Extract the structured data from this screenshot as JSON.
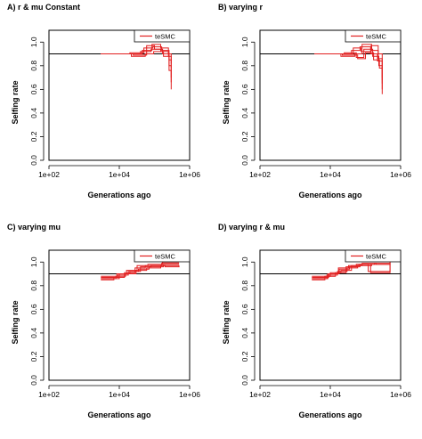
{
  "colors": {
    "series": "#e11f1f",
    "reference": "#000000",
    "axis": "#000000"
  },
  "chart_data": [
    {
      "type": "line",
      "title": "A) r & mu Constant",
      "xlabel": "Generations ago",
      "ylabel": "Selfing rate",
      "x_scale": "log",
      "xlim": [
        100,
        1000000
      ],
      "ylim": [
        0,
        1.1
      ],
      "xticks": [
        "1e+02",
        "1e+04",
        "1e+06"
      ],
      "yticks": [
        "0.0",
        "0.2",
        "0.4",
        "0.6",
        "0.8",
        "1.0"
      ],
      "reference_line": 0.9,
      "legend": "top-right",
      "series": [
        {
          "name": "teSMC",
          "replicates": [
            [
              [
                3000,
                0.9
              ],
              [
                15000,
                0.9
              ],
              [
                40000,
                0.92
              ],
              [
                80000,
                0.94
              ],
              [
                150000,
                0.92
              ],
              [
                250000,
                0.88
              ],
              [
                300000,
                0.82
              ]
            ],
            [
              [
                3000,
                0.9
              ],
              [
                20000,
                0.91
              ],
              [
                50000,
                0.95
              ],
              [
                90000,
                0.96
              ],
              [
                160000,
                0.93
              ],
              [
                260000,
                0.85
              ],
              [
                300000,
                0.78
              ]
            ],
            [
              [
                3000,
                0.9
              ],
              [
                25000,
                0.89
              ],
              [
                60000,
                0.97
              ],
              [
                100000,
                0.94
              ],
              [
                170000,
                0.9
              ],
              [
                260000,
                0.76
              ],
              [
                300000,
                0.7
              ]
            ],
            [
              [
                3000,
                0.9
              ],
              [
                18000,
                0.9
              ],
              [
                45000,
                0.93
              ],
              [
                85000,
                0.98
              ],
              [
                150000,
                0.95
              ],
              [
                250000,
                0.9
              ],
              [
                300000,
                0.6
              ]
            ],
            [
              [
                3000,
                0.9
              ],
              [
                22000,
                0.88
              ],
              [
                55000,
                0.9
              ],
              [
                95000,
                0.92
              ],
              [
                180000,
                0.88
              ],
              [
                260000,
                0.8
              ],
              [
                300000,
                0.66
              ]
            ]
          ]
        }
      ]
    },
    {
      "type": "line",
      "title": "B) varying r",
      "xlabel": "Generations ago",
      "ylabel": "Selfing rate",
      "x_scale": "log",
      "xlim": [
        100,
        1000000
      ],
      "ylim": [
        0,
        1.1
      ],
      "xticks": [
        "1e+02",
        "1e+04",
        "1e+06"
      ],
      "yticks": [
        "0.0",
        "0.2",
        "0.4",
        "0.6",
        "0.8",
        "1.0"
      ],
      "reference_line": 0.9,
      "legend": "top-right",
      "series": [
        {
          "name": "teSMC",
          "replicates": [
            [
              [
                3500,
                0.9
              ],
              [
                15000,
                0.9
              ],
              [
                40000,
                0.93
              ],
              [
                70000,
                0.96
              ],
              [
                140000,
                0.9
              ],
              [
                220000,
                0.84
              ],
              [
                300000,
                0.7
              ]
            ],
            [
              [
                3500,
                0.9
              ],
              [
                20000,
                0.88
              ],
              [
                50000,
                0.9
              ],
              [
                80000,
                0.98
              ],
              [
                150000,
                0.93
              ],
              [
                230000,
                0.86
              ],
              [
                300000,
                0.6
              ]
            ],
            [
              [
                3500,
                0.9
              ],
              [
                25000,
                0.91
              ],
              [
                55000,
                0.87
              ],
              [
                90000,
                0.94
              ],
              [
                160000,
                0.88
              ],
              [
                240000,
                0.8
              ],
              [
                300000,
                0.56
              ]
            ],
            [
              [
                3500,
                0.9
              ],
              [
                18000,
                0.9
              ],
              [
                45000,
                0.95
              ],
              [
                75000,
                0.92
              ],
              [
                145000,
                0.97
              ],
              [
                230000,
                0.9
              ],
              [
                300000,
                0.65
              ]
            ],
            [
              [
                3500,
                0.9
              ],
              [
                22000,
                0.89
              ],
              [
                60000,
                0.86
              ],
              [
                100000,
                0.91
              ],
              [
                170000,
                0.85
              ],
              [
                250000,
                0.78
              ],
              [
                300000,
                0.68
              ]
            ]
          ]
        }
      ]
    },
    {
      "type": "line",
      "title": "C) varying mu",
      "xlabel": "Generations ago",
      "ylabel": "Selfing rate",
      "x_scale": "log",
      "xlim": [
        100,
        1000000
      ],
      "ylim": [
        0,
        1.1
      ],
      "xticks": [
        "1e+02",
        "1e+04",
        "1e+06"
      ],
      "yticks": [
        "0.0",
        "0.2",
        "0.4",
        "0.6",
        "0.8",
        "1.0"
      ],
      "reference_line": 0.9,
      "legend": "top-right",
      "series": [
        {
          "name": "teSMC",
          "replicates": [
            [
              [
                3000,
                0.86
              ],
              [
                8000,
                0.88
              ],
              [
                15000,
                0.9
              ],
              [
                30000,
                0.93
              ],
              [
                60000,
                0.95
              ],
              [
                150000,
                0.97
              ],
              [
                500000,
                0.97
              ]
            ],
            [
              [
                3000,
                0.87
              ],
              [
                9000,
                0.89
              ],
              [
                18000,
                0.92
              ],
              [
                35000,
                0.94
              ],
              [
                70000,
                0.96
              ],
              [
                180000,
                0.98
              ],
              [
                500000,
                0.98
              ]
            ],
            [
              [
                3000,
                0.85
              ],
              [
                7000,
                0.87
              ],
              [
                14000,
                0.91
              ],
              [
                28000,
                0.95
              ],
              [
                55000,
                0.97
              ],
              [
                160000,
                0.99
              ],
              [
                500000,
                0.99
              ]
            ],
            [
              [
                3000,
                0.86
              ],
              [
                10000,
                0.9
              ],
              [
                20000,
                0.92
              ],
              [
                40000,
                0.96
              ],
              [
                80000,
                0.97
              ],
              [
                200000,
                0.96
              ],
              [
                500000,
                0.97
              ]
            ],
            [
              [
                3000,
                0.88
              ],
              [
                8500,
                0.9
              ],
              [
                16000,
                0.93
              ],
              [
                32000,
                0.97
              ],
              [
                65000,
                0.98
              ],
              [
                170000,
                1.0
              ],
              [
                500000,
                1.0
              ]
            ]
          ]
        }
      ]
    },
    {
      "type": "line",
      "title": "D) varying r & mu",
      "xlabel": "Generations ago",
      "ylabel": "Selfing rate",
      "x_scale": "log",
      "xlim": [
        100,
        1000000
      ],
      "ylim": [
        0,
        1.1
      ],
      "xticks": [
        "1e+02",
        "1e+04",
        "1e+06"
      ],
      "yticks": [
        "0.0",
        "0.2",
        "0.4",
        "0.6",
        "0.8",
        "1.0"
      ],
      "reference_line": 0.9,
      "legend": "top-right",
      "series": [
        {
          "name": "teSMC",
          "replicates": [
            [
              [
                3000,
                0.86
              ],
              [
                8000,
                0.89
              ],
              [
                16000,
                0.92
              ],
              [
                30000,
                0.95
              ],
              [
                60000,
                0.97
              ],
              [
                150000,
                0.98
              ],
              [
                500000,
                0.99
              ]
            ],
            [
              [
                3000,
                0.87
              ],
              [
                9000,
                0.9
              ],
              [
                18000,
                0.94
              ],
              [
                35000,
                0.96
              ],
              [
                70000,
                0.98
              ],
              [
                180000,
                0.99
              ],
              [
                500000,
                1.0
              ]
            ],
            [
              [
                3000,
                0.85
              ],
              [
                7000,
                0.88
              ],
              [
                14000,
                0.91
              ],
              [
                28000,
                0.96
              ],
              [
                55000,
                0.98
              ],
              [
                120000,
                0.92
              ],
              [
                500000,
                0.99
              ]
            ],
            [
              [
                3000,
                0.88
              ],
              [
                10000,
                0.91
              ],
              [
                20000,
                0.93
              ],
              [
                40000,
                0.97
              ],
              [
                80000,
                0.99
              ],
              [
                200000,
                0.98
              ],
              [
                500000,
                0.98
              ]
            ],
            [
              [
                3000,
                0.86
              ],
              [
                8500,
                0.9
              ],
              [
                17000,
                0.95
              ],
              [
                33000,
                0.97
              ],
              [
                65000,
                0.98
              ],
              [
                140000,
                0.91
              ],
              [
                500000,
                1.0
              ]
            ]
          ]
        }
      ]
    }
  ]
}
